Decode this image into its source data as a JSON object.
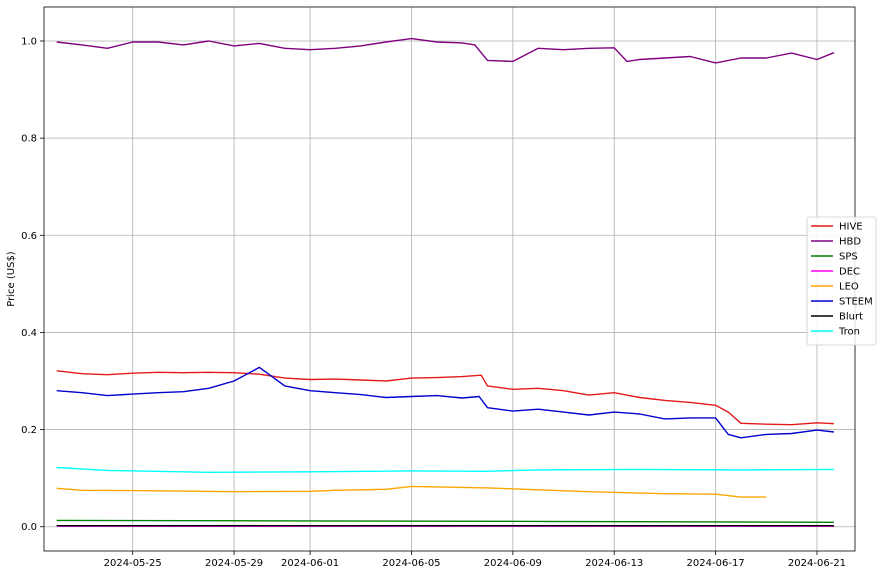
{
  "chart_data": {
    "type": "line",
    "title": "",
    "xlabel": "",
    "ylabel": "Price (US$)",
    "grid": true,
    "legend_position": "center-right",
    "xlim": [
      "2024-05-21T12:00",
      "2024-06-22T12:00"
    ],
    "ylim": [
      -0.05,
      1.07
    ],
    "x_ticks": [
      "2024-05-25",
      "2024-05-29",
      "2024-06-01",
      "2024-06-05",
      "2024-06-09",
      "2024-06-13",
      "2024-06-17",
      "2024-06-21"
    ],
    "y_ticks": [
      "0.0",
      "0.2",
      "0.4",
      "0.6",
      "0.8",
      "1.0"
    ],
    "series": [
      {
        "name": "HIVE",
        "color": "#e31a1c",
        "points": [
          [
            "2024-05-22",
            0.321
          ],
          [
            "2024-05-23",
            0.315
          ],
          [
            "2024-05-24",
            0.313
          ],
          [
            "2024-05-25",
            0.316
          ],
          [
            "2024-05-26",
            0.318
          ],
          [
            "2024-05-27",
            0.317
          ],
          [
            "2024-05-28",
            0.318
          ],
          [
            "2024-05-29",
            0.317
          ],
          [
            "2024-05-30",
            0.314
          ],
          [
            "2024-05-31",
            0.306
          ],
          [
            "2024-06-01",
            0.303
          ],
          [
            "2024-06-02",
            0.304
          ],
          [
            "2024-06-03",
            0.302
          ],
          [
            "2024-06-04",
            0.3
          ],
          [
            "2024-06-05",
            0.306
          ],
          [
            "2024-06-06",
            0.307
          ],
          [
            "2024-06-07",
            0.309
          ],
          [
            "2024-06-07T18:00",
            0.312
          ],
          [
            "2024-06-08",
            0.29
          ],
          [
            "2024-06-09",
            0.283
          ],
          [
            "2024-06-10",
            0.285
          ],
          [
            "2024-06-11",
            0.28
          ],
          [
            "2024-06-12",
            0.271
          ],
          [
            "2024-06-13",
            0.276
          ],
          [
            "2024-06-14",
            0.266
          ],
          [
            "2024-06-15",
            0.26
          ],
          [
            "2024-06-16",
            0.256
          ],
          [
            "2024-06-17",
            0.25
          ],
          [
            "2024-06-17T12:00",
            0.236
          ],
          [
            "2024-06-18",
            0.213
          ],
          [
            "2024-06-19",
            0.211
          ],
          [
            "2024-06-20",
            0.21
          ],
          [
            "2024-06-21",
            0.214
          ],
          [
            "2024-06-21T16:00",
            0.212
          ]
        ]
      },
      {
        "name": "HBD",
        "color": "#800080",
        "points": [
          [
            "2024-05-22",
            0.998
          ],
          [
            "2024-05-23",
            0.992
          ],
          [
            "2024-05-24",
            0.985
          ],
          [
            "2024-05-25",
            0.998
          ],
          [
            "2024-05-26",
            0.998
          ],
          [
            "2024-05-27",
            0.992
          ],
          [
            "2024-05-28",
            1.0
          ],
          [
            "2024-05-29",
            0.99
          ],
          [
            "2024-05-30",
            0.995
          ],
          [
            "2024-05-31",
            0.985
          ],
          [
            "2024-06-01",
            0.982
          ],
          [
            "2024-06-02",
            0.985
          ],
          [
            "2024-06-03",
            0.99
          ],
          [
            "2024-06-04",
            0.998
          ],
          [
            "2024-06-05",
            1.005
          ],
          [
            "2024-06-06",
            0.998
          ],
          [
            "2024-06-07",
            0.996
          ],
          [
            "2024-06-07T12:00",
            0.992
          ],
          [
            "2024-06-08",
            0.96
          ],
          [
            "2024-06-09",
            0.958
          ],
          [
            "2024-06-10",
            0.985
          ],
          [
            "2024-06-11",
            0.982
          ],
          [
            "2024-06-12",
            0.985
          ],
          [
            "2024-06-13",
            0.986
          ],
          [
            "2024-06-13T12:00",
            0.958
          ],
          [
            "2024-06-14",
            0.962
          ],
          [
            "2024-06-15",
            0.965
          ],
          [
            "2024-06-16",
            0.968
          ],
          [
            "2024-06-17",
            0.955
          ],
          [
            "2024-06-18",
            0.965
          ],
          [
            "2024-06-19",
            0.965
          ],
          [
            "2024-06-20",
            0.975
          ],
          [
            "2024-06-21",
            0.962
          ],
          [
            "2024-06-21T16:00",
            0.976
          ]
        ]
      },
      {
        "name": "SPS",
        "color": "#008000",
        "points": [
          [
            "2024-05-22",
            0.013
          ],
          [
            "2024-06-01",
            0.012
          ],
          [
            "2024-06-10",
            0.011
          ],
          [
            "2024-06-17",
            0.01
          ],
          [
            "2024-06-21T16:00",
            0.009
          ]
        ]
      },
      {
        "name": "DEC",
        "color": "#ff00ff",
        "points": [
          [
            "2024-05-22",
            0.001
          ],
          [
            "2024-06-21T16:00",
            0.001
          ]
        ]
      },
      {
        "name": "LEO",
        "color": "#ffa500",
        "points": [
          [
            "2024-05-22",
            0.079
          ],
          [
            "2024-05-23",
            0.075
          ],
          [
            "2024-05-26",
            0.074
          ],
          [
            "2024-05-29",
            0.072
          ],
          [
            "2024-06-01",
            0.073
          ],
          [
            "2024-06-02",
            0.075
          ],
          [
            "2024-06-04",
            0.077
          ],
          [
            "2024-06-05",
            0.083
          ],
          [
            "2024-06-06",
            0.082
          ],
          [
            "2024-06-08",
            0.08
          ],
          [
            "2024-06-10",
            0.076
          ],
          [
            "2024-06-12",
            0.072
          ],
          [
            "2024-06-15",
            0.068
          ],
          [
            "2024-06-17",
            0.067
          ],
          [
            "2024-06-18",
            0.061
          ],
          [
            "2024-06-19",
            0.061
          ]
        ]
      },
      {
        "name": "STEEM",
        "color": "#0000cd",
        "points": [
          [
            "2024-05-22",
            0.28
          ],
          [
            "2024-05-23",
            0.276
          ],
          [
            "2024-05-24",
            0.27
          ],
          [
            "2024-05-25",
            0.273
          ],
          [
            "2024-05-26",
            0.276
          ],
          [
            "2024-05-27",
            0.278
          ],
          [
            "2024-05-28",
            0.285
          ],
          [
            "2024-05-29",
            0.3
          ],
          [
            "2024-05-30",
            0.328
          ],
          [
            "2024-05-31",
            0.29
          ],
          [
            "2024-06-01",
            0.28
          ],
          [
            "2024-06-02",
            0.276
          ],
          [
            "2024-06-03",
            0.272
          ],
          [
            "2024-06-04",
            0.266
          ],
          [
            "2024-06-05",
            0.268
          ],
          [
            "2024-06-06",
            0.27
          ],
          [
            "2024-06-07",
            0.265
          ],
          [
            "2024-06-07T16:00",
            0.268
          ],
          [
            "2024-06-08",
            0.245
          ],
          [
            "2024-06-09",
            0.238
          ],
          [
            "2024-06-10",
            0.242
          ],
          [
            "2024-06-11",
            0.236
          ],
          [
            "2024-06-12",
            0.23
          ],
          [
            "2024-06-13",
            0.236
          ],
          [
            "2024-06-14",
            0.232
          ],
          [
            "2024-06-15",
            0.222
          ],
          [
            "2024-06-16",
            0.224
          ],
          [
            "2024-06-17",
            0.224
          ],
          [
            "2024-06-17T12:00",
            0.19
          ],
          [
            "2024-06-18",
            0.183
          ],
          [
            "2024-06-19",
            0.19
          ],
          [
            "2024-06-20",
            0.192
          ],
          [
            "2024-06-21",
            0.199
          ],
          [
            "2024-06-21T16:00",
            0.195
          ]
        ]
      },
      {
        "name": "Blurt",
        "color": "#000000",
        "points": [
          [
            "2024-05-22",
            0.002
          ],
          [
            "2024-06-21T16:00",
            0.002
          ]
        ]
      },
      {
        "name": "Tron",
        "color": "#00ffff",
        "points": [
          [
            "2024-05-22",
            0.122
          ],
          [
            "2024-05-24",
            0.116
          ],
          [
            "2024-05-28",
            0.112
          ],
          [
            "2024-06-01",
            0.113
          ],
          [
            "2024-06-05",
            0.115
          ],
          [
            "2024-06-08",
            0.114
          ],
          [
            "2024-06-10",
            0.117
          ],
          [
            "2024-06-14",
            0.118
          ],
          [
            "2024-06-18",
            0.117
          ],
          [
            "2024-06-21T16:00",
            0.118
          ]
        ]
      }
    ]
  }
}
